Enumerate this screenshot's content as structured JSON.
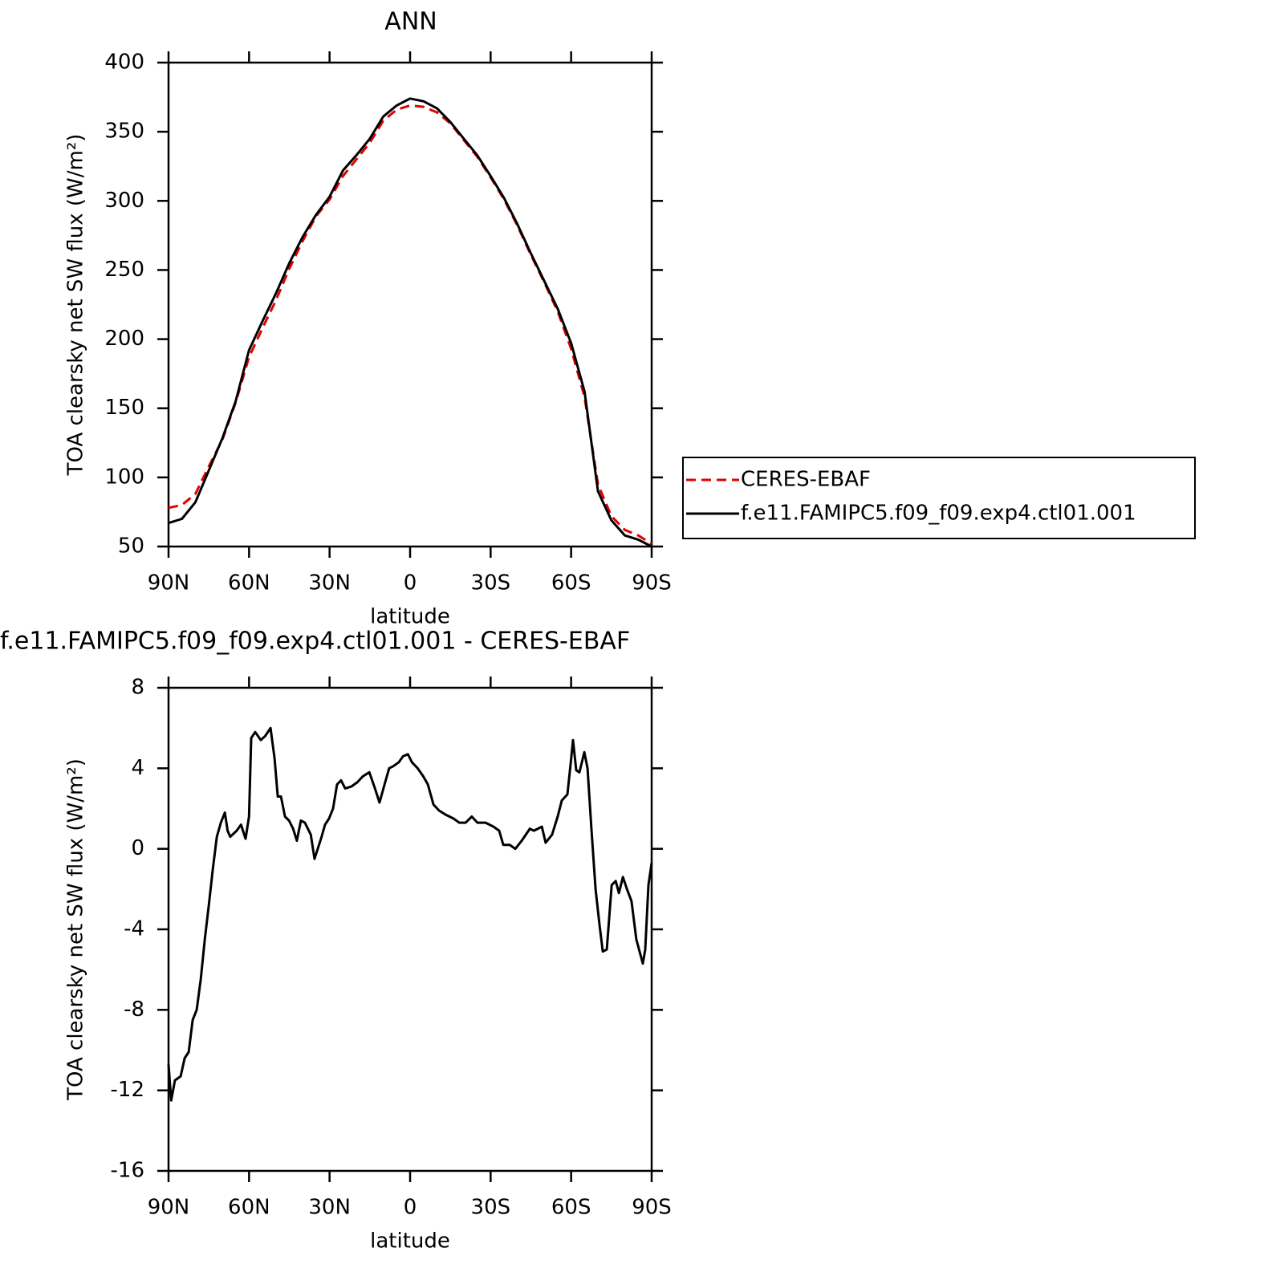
{
  "chart_data": [
    {
      "type": "line",
      "title": "ANN",
      "x_label": "latitude",
      "y_label": "TOA clearsky net SW flux (W/m²)",
      "x": [
        90,
        85,
        80,
        75,
        70,
        65,
        60,
        55,
        50,
        45,
        40,
        35,
        30,
        25,
        20,
        15,
        10,
        5,
        0,
        -5,
        -10,
        -15,
        -20,
        -25,
        -30,
        -35,
        -40,
        -45,
        -50,
        -55,
        -60,
        -65,
        -70,
        -75,
        -80,
        -85,
        -90
      ],
      "series": [
        {
          "name": "CERES-EBAF",
          "color": "#e00000",
          "dashed": true,
          "values": [
            78,
            80,
            88,
            108,
            127,
            154,
            187,
            208,
            228,
            251,
            271,
            289,
            301,
            318,
            330,
            342,
            358,
            366,
            369,
            368,
            364,
            356,
            344,
            332,
            317,
            301,
            282,
            261,
            241,
            220,
            193,
            158,
            95,
            72,
            62,
            58,
            52
          ]
        },
        {
          "name": "f.e11.FAMIPC5.f09_f09.exp4.ctl01.001",
          "color": "#000000",
          "dashed": false,
          "values": [
            67,
            70,
            82,
            105,
            128,
            155,
            192,
            213,
            233,
            255,
            274,
            290,
            303,
            322,
            333,
            345,
            361,
            369,
            374,
            372,
            367,
            357,
            345,
            333,
            318,
            302,
            283,
            262,
            242,
            222,
            197,
            162,
            90,
            69,
            58,
            55,
            50
          ]
        }
      ],
      "xlim": [
        90,
        -90
      ],
      "xticks": [
        {
          "value": 90,
          "label": "90N"
        },
        {
          "value": 60,
          "label": "60N"
        },
        {
          "value": 30,
          "label": "30N"
        },
        0,
        {
          "value": -30,
          "label": "30S"
        },
        {
          "value": -60,
          "label": "60S"
        },
        {
          "value": -90,
          "label": "90S"
        }
      ],
      "ylim": [
        50,
        400
      ],
      "yticks": [
        50,
        100,
        150,
        200,
        250,
        300,
        350,
        400
      ],
      "legend": "right"
    },
    {
      "type": "line",
      "title": "f.e11.FAMIPC5.f09_f09.exp4.ctl01.001 - CERES-EBAF",
      "x_label": "latitude",
      "y_label": "TOA clearsky net SW flux (W/m²)",
      "x": [
        90,
        89,
        87.6,
        85.5,
        84,
        82.5,
        81,
        79.5,
        78,
        76.5,
        75,
        73.5,
        72,
        70.5,
        69,
        68,
        67,
        64.6,
        63,
        61.3,
        60,
        59.2,
        57.7,
        55.6,
        54,
        52,
        50.5,
        49.3,
        48.1,
        46.6,
        45.1,
        43.6,
        42.2,
        40.7,
        39.2,
        37,
        35.6,
        33.2,
        31.7,
        30.2,
        28.7,
        27.2,
        25.7,
        24.2,
        21.8,
        19.7,
        17.6,
        15.2,
        13.1,
        11.4,
        9.3,
        7.8,
        6.3,
        4.2,
        2.6,
        0.8,
        -0.7,
        -2.8,
        -4.9,
        -6.6,
        -8.7,
        -10.8,
        -13.2,
        -16.2,
        -18.3,
        -20.7,
        -23,
        -25.1,
        -28.1,
        -31.1,
        -33.2,
        -34.7,
        -37.1,
        -39.2,
        -41.6,
        -44.6,
        -46.1,
        -49.1,
        -50.5,
        -52.9,
        -55,
        -56.5,
        -58.6,
        -59.8,
        -60.7,
        -61.9,
        -63.1,
        -64.9,
        -66.1,
        -67.6,
        -69.1,
        -70.6,
        -71.8,
        -73.3,
        -75.1,
        -76.6,
        -77.8,
        -79.3,
        -80.8,
        -82.5,
        -84.3,
        -86.7,
        -87.6,
        -88.8,
        -90
      ],
      "series": [
        {
          "color": "#000000",
          "dashed": false,
          "values": [
            -10.7,
            -12.5,
            -11.5,
            -11.3,
            -10.4,
            -10.1,
            -8.5,
            -8,
            -6.5,
            -4.5,
            -2.8,
            -1,
            0.6,
            1.3,
            1.8,
            0.9,
            0.6,
            0.9,
            1.2,
            0.5,
            1.6,
            5.5,
            5.8,
            5.4,
            5.6,
            6,
            4.5,
            2.6,
            2.6,
            1.6,
            1.4,
            1,
            0.4,
            1.4,
            1.3,
            0.7,
            -0.5,
            0.5,
            1.2,
            1.5,
            2,
            3.2,
            3.4,
            3,
            3.1,
            3.3,
            3.6,
            3.8,
            3,
            2.3,
            3.3,
            4,
            4.1,
            4.3,
            4.6,
            4.7,
            4.3,
            4,
            3.6,
            3.2,
            2.2,
            1.9,
            1.7,
            1.5,
            1.3,
            1.3,
            1.6,
            1.3,
            1.3,
            1.1,
            0.9,
            0.2,
            0.2,
            0,
            0.4,
            1,
            0.9,
            1.1,
            0.3,
            0.7,
            1.6,
            2.4,
            2.7,
            4.2,
            5.4,
            3.9,
            3.8,
            4.8,
            4,
            0.9,
            -2,
            -3.8,
            -5.1,
            -5,
            -1.8,
            -1.6,
            -2.2,
            -1.4,
            -2,
            -2.6,
            -4.5,
            -5.7,
            -5,
            -1.8,
            -0.7
          ]
        }
      ],
      "xlim": [
        90,
        -90
      ],
      "xticks": [
        {
          "value": 90,
          "label": "90N"
        },
        {
          "value": 60,
          "label": "60N"
        },
        {
          "value": 30,
          "label": "30N"
        },
        0,
        {
          "value": -30,
          "label": "30S"
        },
        {
          "value": -60,
          "label": "60S"
        },
        {
          "value": -90,
          "label": "90S"
        }
      ],
      "ylim": [
        -16,
        8
      ],
      "yticks": [
        -16,
        -12,
        -8,
        -4,
        0,
        4,
        8
      ]
    }
  ]
}
